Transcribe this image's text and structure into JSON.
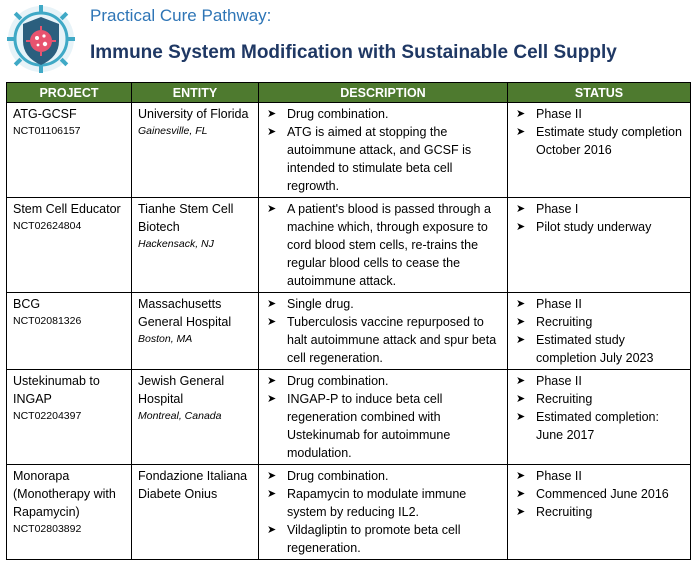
{
  "header": {
    "subtitle": "Practical Cure Pathway:",
    "title": "Immune System Modification with Sustainable Cell Supply",
    "logo_icon": "virus-shield-icon"
  },
  "colors": {
    "header_fill": "#4e7a2f",
    "subtitle": "#2e75b6",
    "title": "#1f3864",
    "logo_shield": "#2b5f7e",
    "logo_ring": "#3fa9c6",
    "logo_virus": "#e8536f"
  },
  "columns": [
    "PROJECT",
    "ENTITY",
    "DESCRIPTION",
    "STATUS"
  ],
  "bullet_icon": "arrow-right-bullet-icon",
  "rows": [
    {
      "project": "ATG-GCSF",
      "nct": "NCT01106157",
      "entity": "University of Florida",
      "location": "Gainesville, FL",
      "description": [
        "Drug combination.",
        "ATG is aimed at stopping the autoimmune attack, and GCSF is intended to stimulate beta cell regrowth."
      ],
      "status": [
        "Phase II",
        "Estimate study completion October 2016"
      ]
    },
    {
      "project": "Stem Cell Educator",
      "nct": "NCT02624804",
      "entity": "Tianhe Stem Cell Biotech",
      "location": "Hackensack, NJ",
      "description": [
        "A patient's blood is passed through a machine which, through exposure to cord blood stem cells, re-trains the regular blood cells to cease the autoimmune attack."
      ],
      "status": [
        "Phase I",
        "Pilot study underway"
      ]
    },
    {
      "project": "BCG",
      "nct": "NCT02081326",
      "entity": "Massachusetts General Hospital",
      "location": "Boston, MA",
      "description": [
        "Single drug.",
        "Tuberculosis vaccine repurposed to halt autoimmune attack and spur beta cell regeneration."
      ],
      "status": [
        "Phase II",
        "Recruiting",
        "Estimated study completion July 2023"
      ]
    },
    {
      "project": "Ustekinumab to INGAP",
      "nct": "NCT02204397",
      "entity": "Jewish General Hospital",
      "location": "Montreal, Canada",
      "description": [
        "Drug combination.",
        "INGAP-P to induce beta cell regeneration combined with Ustekinumab for autoimmune modulation."
      ],
      "status": [
        "Phase II",
        "Recruiting",
        "Estimated completion: June 2017"
      ]
    },
    {
      "project": "Monorapa (Monotherapy with Rapamycin)",
      "nct": "NCT02803892",
      "entity": "Fondazione Italiana Diabete Onius",
      "location": "",
      "description": [
        "Drug combination.",
        "Rapamycin to modulate immune system by reducing IL2.",
        "Vildagliptin to promote beta cell regeneration."
      ],
      "status": [
        "Phase II",
        "Commenced June 2016",
        "Recruiting"
      ]
    }
  ]
}
